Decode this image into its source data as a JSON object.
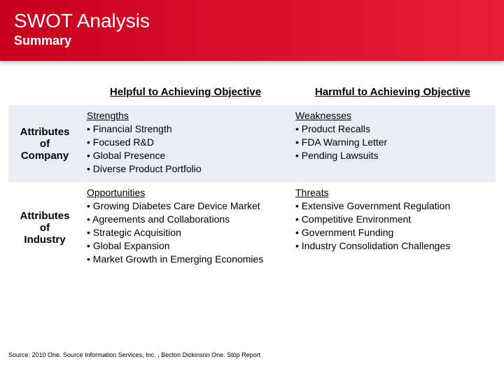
{
  "header": {
    "title": "SWOT Analysis",
    "subtitle": "Summary",
    "bg_from": "#c8001e",
    "bg_to": "#e82034"
  },
  "table": {
    "col_headers": [
      "Helpful to Achieving Objective",
      "Harmful to Achieving Objective"
    ],
    "row_headers": [
      "Attributes of Company",
      "Attributes of Industry"
    ],
    "cells": [
      [
        {
          "title": "Strengths",
          "bullets": [
            "Financial Strength",
            "Focused R&D",
            "Global Presence",
            "Diverse Product Portfolio"
          ]
        },
        {
          "title": "Weaknesses",
          "bullets": [
            "Product Recalls",
            "FDA Warning Letter",
            "Pending Lawsuits"
          ]
        }
      ],
      [
        {
          "title": "Opportunities",
          "bullets": [
            "Growing Diabetes Care Device Market",
            "Agreements and Collaborations",
            "Strategic Acquisition",
            "Global Expansion",
            "Market Growth in Emerging Economies"
          ]
        },
        {
          "title": "Threats",
          "bullets": [
            "Extensive Government Regulation",
            "Competitive Environment",
            "Government Funding",
            "Industry Consolidation Challenges"
          ]
        }
      ]
    ],
    "row_bg_odd": "#e9edf4",
    "row_bg_even": "#ffffff",
    "header_fontsize": 15,
    "cell_fontsize": 14
  },
  "footer": {
    "text": "Source: 2010 One. Source Information Services, Inc. , Becton Dickinson One. Stop Report"
  }
}
